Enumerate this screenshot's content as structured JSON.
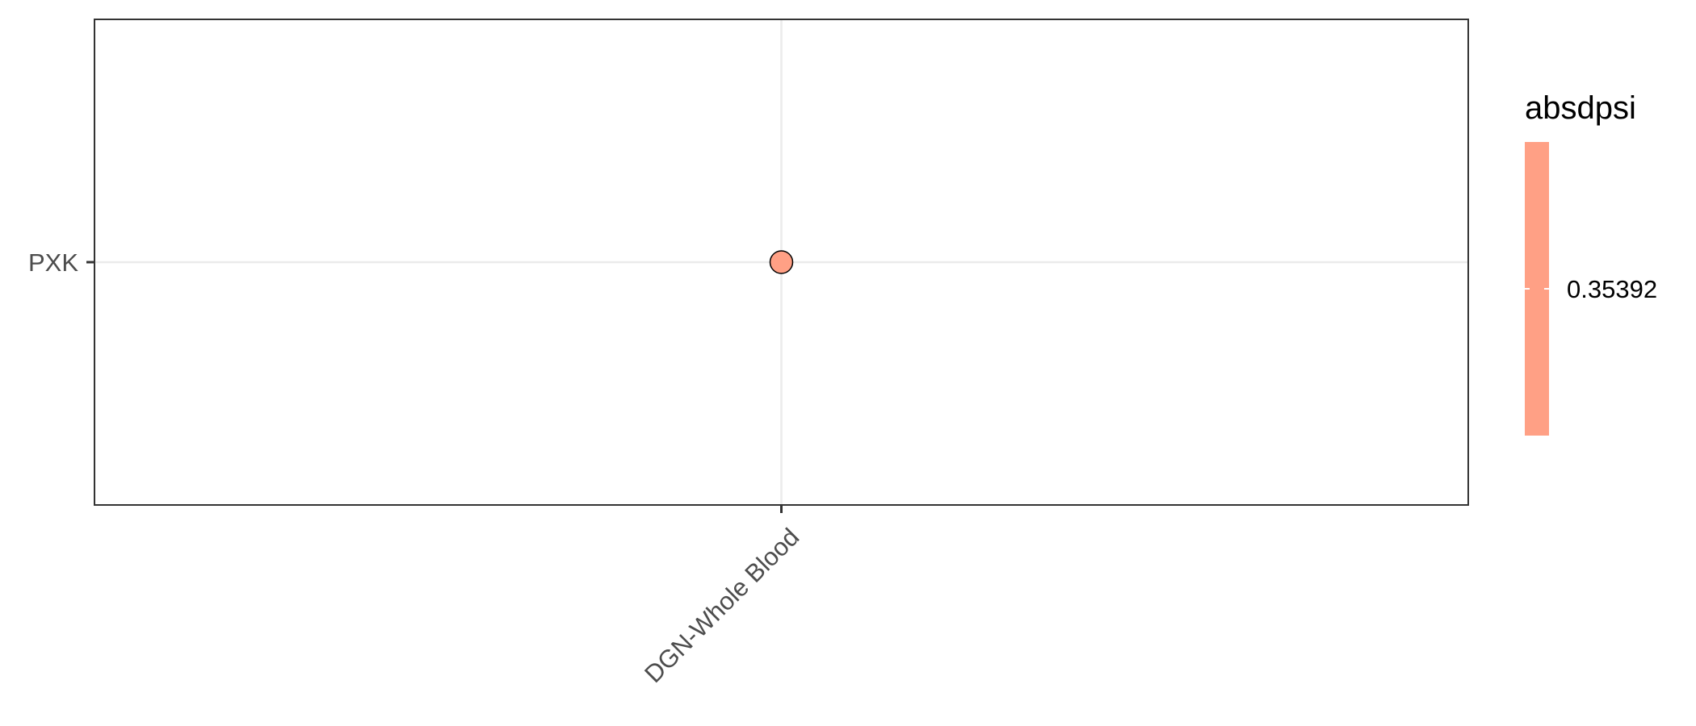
{
  "chart_data": {
    "type": "scatter",
    "x_categories": [
      "DGN-Whole Blood"
    ],
    "y_categories": [
      "PXK"
    ],
    "points": [
      {
        "x": "DGN-Whole Blood",
        "y": "PXK",
        "absdpsi": 0.35392
      }
    ],
    "legend": {
      "title": "absdpsi",
      "labels": [
        "0.35392"
      ],
      "placement": "right"
    },
    "grid": true,
    "colors": {
      "point_fill": "#FFA085",
      "point_stroke": "#000000",
      "gridline": "#ebebeb",
      "panel_border": "#333333"
    }
  }
}
